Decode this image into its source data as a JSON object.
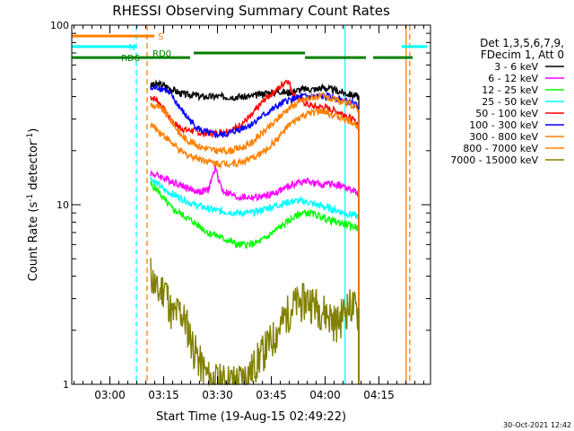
{
  "chart_data": {
    "type": "line",
    "title": "RHESSI Observing Summary Count Rates",
    "xlabel": "Start Time (19-Aug-15 02:49:22)",
    "ylabel_main": "Count Rate (s",
    "ylabel_sup": "-1",
    "ylabel_tail": " detector",
    "ylabel_end": ")",
    "y_scale": "log",
    "ylim": [
      1,
      100
    ],
    "xlim_minutes": [
      0,
      100
    ],
    "x_ticks": [
      {
        "label": "03:00",
        "min": 10.63
      },
      {
        "label": "03:15",
        "min": 25.63
      },
      {
        "label": "03:30",
        "min": 40.63
      },
      {
        "label": "03:45",
        "min": 55.63
      },
      {
        "label": "04:00",
        "min": 70.63
      },
      {
        "label": "04:15",
        "min": 85.63
      }
    ],
    "y_ticks": [
      {
        "label": "1",
        "value": 1
      },
      {
        "label": "10",
        "value": 10
      },
      {
        "label": "100",
        "value": 100
      }
    ],
    "legend_header": [
      "Det 1,3,5,6,7,9,",
      "FDecim 1, Att 0"
    ],
    "legend_placement": "right",
    "series": [
      {
        "name": "3 - 6 keV",
        "color": "#000000",
        "x": [
          22,
          24,
          26,
          28,
          30,
          32,
          34,
          36,
          38,
          40,
          42,
          44,
          46,
          48,
          50,
          52,
          54,
          56,
          58,
          60,
          62,
          64,
          66,
          68,
          70,
          72,
          74,
          76,
          78,
          80
        ],
        "y": [
          46,
          47,
          46,
          44,
          42,
          41,
          41,
          40,
          40,
          40,
          40,
          40,
          40,
          40,
          40,
          41,
          42,
          42,
          43,
          42,
          43,
          44,
          44,
          44,
          45,
          44,
          43,
          42,
          41,
          40
        ]
      },
      {
        "name": "6 - 12 keV",
        "color": "#ff00ff",
        "x": [
          22,
          24,
          26,
          28,
          30,
          32,
          34,
          36,
          38,
          40,
          42,
          44,
          46,
          48,
          50,
          52,
          54,
          56,
          58,
          60,
          62,
          64,
          66,
          68,
          70,
          72,
          74,
          76,
          78,
          80
        ],
        "y": [
          15,
          14.5,
          14,
          13.5,
          13,
          12.5,
          12,
          11.8,
          12,
          16,
          12,
          11.5,
          11,
          11,
          11,
          11,
          11.2,
          11.5,
          12,
          12.5,
          13,
          13.5,
          13.5,
          13,
          13,
          13,
          13,
          12.5,
          12,
          11.5
        ]
      },
      {
        "name": "12 - 25 keV",
        "color": "#00ff00",
        "x": [
          22,
          24,
          26,
          28,
          30,
          32,
          34,
          36,
          38,
          40,
          42,
          44,
          46,
          48,
          50,
          52,
          54,
          56,
          58,
          60,
          62,
          64,
          66,
          68,
          70,
          72,
          74,
          76,
          78,
          80
        ],
        "y": [
          13,
          12,
          10.5,
          9.5,
          9,
          8.5,
          8,
          7.5,
          7,
          6.8,
          6.5,
          6.3,
          6,
          6,
          6,
          6.2,
          6.5,
          7,
          7.5,
          8,
          8.5,
          9,
          9,
          8.8,
          8.5,
          8.2,
          8,
          7.8,
          7.6,
          7.5
        ]
      },
      {
        "name": "25 - 50 keV",
        "color": "#00ffff",
        "x": [
          22,
          24,
          26,
          28,
          30,
          32,
          34,
          36,
          38,
          40,
          42,
          44,
          46,
          48,
          50,
          52,
          54,
          56,
          58,
          60,
          62,
          64,
          66,
          68,
          70,
          72,
          74,
          76,
          78,
          80
        ],
        "y": [
          14,
          13,
          12,
          11.5,
          11,
          10.5,
          10,
          9.8,
          9.5,
          9.3,
          9.2,
          9.1,
          9,
          9,
          9,
          9.2,
          9.5,
          9.8,
          10,
          10.3,
          10.5,
          10.5,
          10.3,
          10,
          9.8,
          9.5,
          9.3,
          9,
          8.8,
          8.6
        ]
      },
      {
        "name": "50 - 100 keV",
        "color": "#ff0000",
        "x": [
          22,
          24,
          26,
          28,
          30,
          32,
          34,
          36,
          38,
          40,
          42,
          44,
          46,
          48,
          50,
          52,
          54,
          56,
          58,
          60,
          62,
          64,
          66,
          68,
          70,
          72,
          74,
          76,
          78,
          80
        ],
        "y": [
          40,
          38,
          33,
          29,
          27,
          26,
          26,
          25,
          25,
          25,
          25.5,
          26,
          27,
          29,
          31,
          35,
          39,
          42,
          45,
          50,
          41,
          38,
          36,
          35,
          35,
          34,
          33,
          32,
          30,
          28
        ]
      },
      {
        "name": "100 - 300 keV",
        "color": "#0000ff",
        "x": [
          22,
          24,
          26,
          28,
          30,
          32,
          34,
          36,
          38,
          40,
          42,
          44,
          46,
          48,
          50,
          52,
          54,
          56,
          58,
          60,
          62,
          64,
          66,
          68,
          70,
          72,
          74,
          76,
          78,
          80
        ],
        "y": [
          44,
          45,
          44,
          40,
          35,
          31,
          28,
          26,
          25,
          24.5,
          24.5,
          25,
          26,
          27,
          28,
          30,
          32,
          34,
          36,
          38,
          39,
          40,
          40,
          40,
          40,
          40,
          39,
          38,
          37,
          35
        ]
      },
      {
        "name": "300 - 800 keV",
        "color": "#ff8000",
        "x": [
          22,
          24,
          26,
          28,
          30,
          32,
          34,
          36,
          38,
          40,
          42,
          44,
          46,
          48,
          50,
          52,
          54,
          56,
          58,
          60,
          62,
          64,
          66,
          68,
          70,
          72,
          74,
          76,
          78,
          80
        ],
        "y": [
          36,
          35,
          33,
          29,
          25,
          23,
          22,
          21,
          20.5,
          20,
          20,
          20,
          20.5,
          21,
          22,
          24,
          26,
          28,
          31,
          34,
          36,
          38,
          39,
          40,
          40,
          39,
          38,
          37,
          36,
          34
        ]
      },
      {
        "name": "800 - 7000 keV",
        "color": "#ff8000",
        "x": [
          22,
          24,
          26,
          28,
          30,
          32,
          34,
          36,
          38,
          40,
          42,
          44,
          46,
          48,
          50,
          52,
          54,
          56,
          58,
          60,
          62,
          64,
          66,
          68,
          70,
          72,
          74,
          76,
          78,
          80
        ],
        "y": [
          28,
          26,
          24,
          22,
          20,
          19,
          18.5,
          18,
          17.5,
          17,
          17,
          17,
          17,
          17.5,
          18,
          19,
          20,
          22,
          24,
          27,
          29,
          31,
          32,
          33,
          33,
          32,
          31,
          30,
          29,
          27
        ]
      },
      {
        "name": "7000 - 15000 keV",
        "color": "#808000",
        "x": [
          22,
          24,
          26,
          28,
          30,
          32,
          34,
          36,
          38,
          40,
          42,
          44,
          46,
          48,
          50,
          52,
          54,
          56,
          58,
          60,
          62,
          64,
          66,
          68,
          70,
          72,
          74,
          76,
          78,
          80
        ],
        "y": [
          4.2,
          3.2,
          3.6,
          2.4,
          2.6,
          2.2,
          1.6,
          1.3,
          1.1,
          1.05,
          1.05,
          1.05,
          1.05,
          1.1,
          1.2,
          1.4,
          1.6,
          1.8,
          2.1,
          2.5,
          2.8,
          2.9,
          3.0,
          2.8,
          2.6,
          2.4,
          2.2,
          2.6,
          2.8,
          2.5
        ]
      }
    ],
    "flag_bars": [
      {
        "label": "S",
        "color": "#ff8000",
        "y": 87,
        "segments": [
          [
            0,
            23
          ]
        ]
      },
      {
        "label": "N",
        "color": "#00ffff",
        "y": 76,
        "segments": [
          [
            0,
            18
          ],
          [
            92,
            99
          ]
        ]
      },
      {
        "label": "RD0",
        "color": "#008000",
        "y": 70,
        "segments": [
          [
            34,
            65
          ]
        ]
      },
      {
        "label": "RD6",
        "color": "#008000",
        "y": 66,
        "segments": [
          [
            0,
            33
          ],
          [
            65,
            82
          ],
          [
            84,
            95
          ]
        ]
      }
    ],
    "vlines": [
      {
        "min": 18,
        "color": "#00ffff",
        "style": "dashed"
      },
      {
        "min": 21,
        "color": "#ff8000",
        "style": "dashed"
      },
      {
        "min": 76.2,
        "color": "#00ffff",
        "style": "solid"
      },
      {
        "min": 93.2,
        "color": "#ff8000",
        "style": "solid"
      },
      {
        "min": 94.2,
        "color": "#ff8000",
        "style": "dashed"
      }
    ],
    "grid": false,
    "footer_date": "30-Oct-2021 12:42"
  }
}
